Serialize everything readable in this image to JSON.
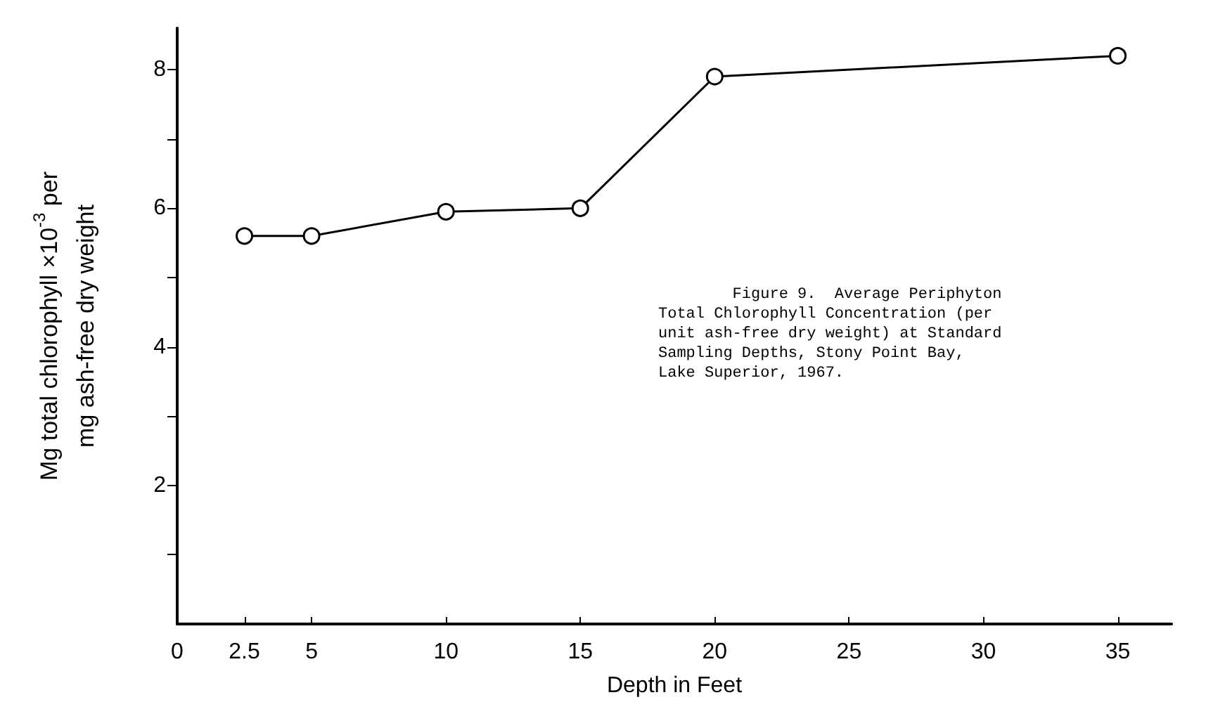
{
  "chart_data": {
    "type": "line",
    "xlabel": "Depth in Feet",
    "ylabel": "Mg total chlorophyll ×10$^{-3}$ per\nmg ash-free dry weight",
    "x": [
      2.5,
      5,
      10,
      15,
      20,
      35
    ],
    "series": [
      {
        "color": "#000000",
        "values": [
          5.6,
          5.6,
          5.95,
          6.0,
          7.9,
          8.2
        ]
      }
    ],
    "xlim": [
      0,
      37
    ],
    "xticks": [
      0,
      2.5,
      5,
      10,
      15,
      20,
      25,
      30,
      35
    ],
    "ylim": [
      0,
      8.6
    ],
    "yticks": [
      {
        "value": 1,
        "label": null
      },
      2,
      {
        "value": 3,
        "label": null
      },
      4,
      {
        "value": 5,
        "label": null
      },
      6,
      {
        "value": 7,
        "label": null
      },
      8
    ],
    "annotations": [
      "        Figure 9.  Average Periphyton\nTotal Chlorophyll Concentration (per\nunit ash-free dry weight) at Standard\nSampling Depths, Stony Point Bay,\nLake Superior, 1967."
    ],
    "grid": false,
    "marker": "circle",
    "line_style": "solid"
  }
}
